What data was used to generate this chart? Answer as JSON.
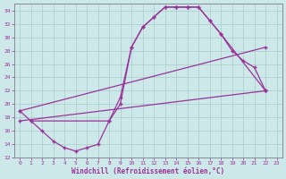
{
  "xlabel": "Windchill (Refroidissement éolien,°C)",
  "bg_color": "#cce8e8",
  "grid_color": "#aacccc",
  "line_color": "#993399",
  "ylim": [
    12,
    35
  ],
  "xlim": [
    -0.5,
    23
  ],
  "yticks": [
    12,
    14,
    16,
    18,
    20,
    22,
    24,
    26,
    28,
    30,
    32,
    34
  ],
  "xticks": [
    0,
    1,
    2,
    3,
    4,
    5,
    6,
    7,
    8,
    9,
    10,
    11,
    12,
    13,
    14,
    15,
    16,
    17,
    18,
    19,
    20,
    21,
    22,
    23
  ],
  "curve1_x": [
    0,
    1,
    2,
    3,
    4,
    5,
    6,
    7,
    8,
    9,
    10,
    11,
    12,
    13,
    14,
    15,
    16,
    17,
    18,
    22
  ],
  "curve1_y": [
    19.0,
    17.5,
    16.0,
    14.5,
    13.5,
    13.0,
    13.5,
    14.0,
    17.5,
    21.0,
    28.5,
    31.5,
    33.0,
    34.5,
    34.5,
    34.5,
    34.5,
    32.5,
    30.5,
    22.0
  ],
  "curve2_x": [
    1,
    8,
    9,
    10,
    11,
    12,
    13,
    14,
    15,
    16,
    17,
    18,
    19,
    20,
    21,
    22
  ],
  "curve2_y": [
    17.5,
    17.5,
    20.0,
    28.5,
    31.5,
    33.0,
    34.5,
    34.5,
    34.5,
    34.5,
    32.5,
    30.5,
    28.0,
    26.5,
    25.5,
    22.0
  ],
  "line1_x": [
    0,
    22
  ],
  "line1_y": [
    19.0,
    28.5
  ],
  "line2_x": [
    0,
    22
  ],
  "line2_y": [
    17.5,
    22.0
  ]
}
